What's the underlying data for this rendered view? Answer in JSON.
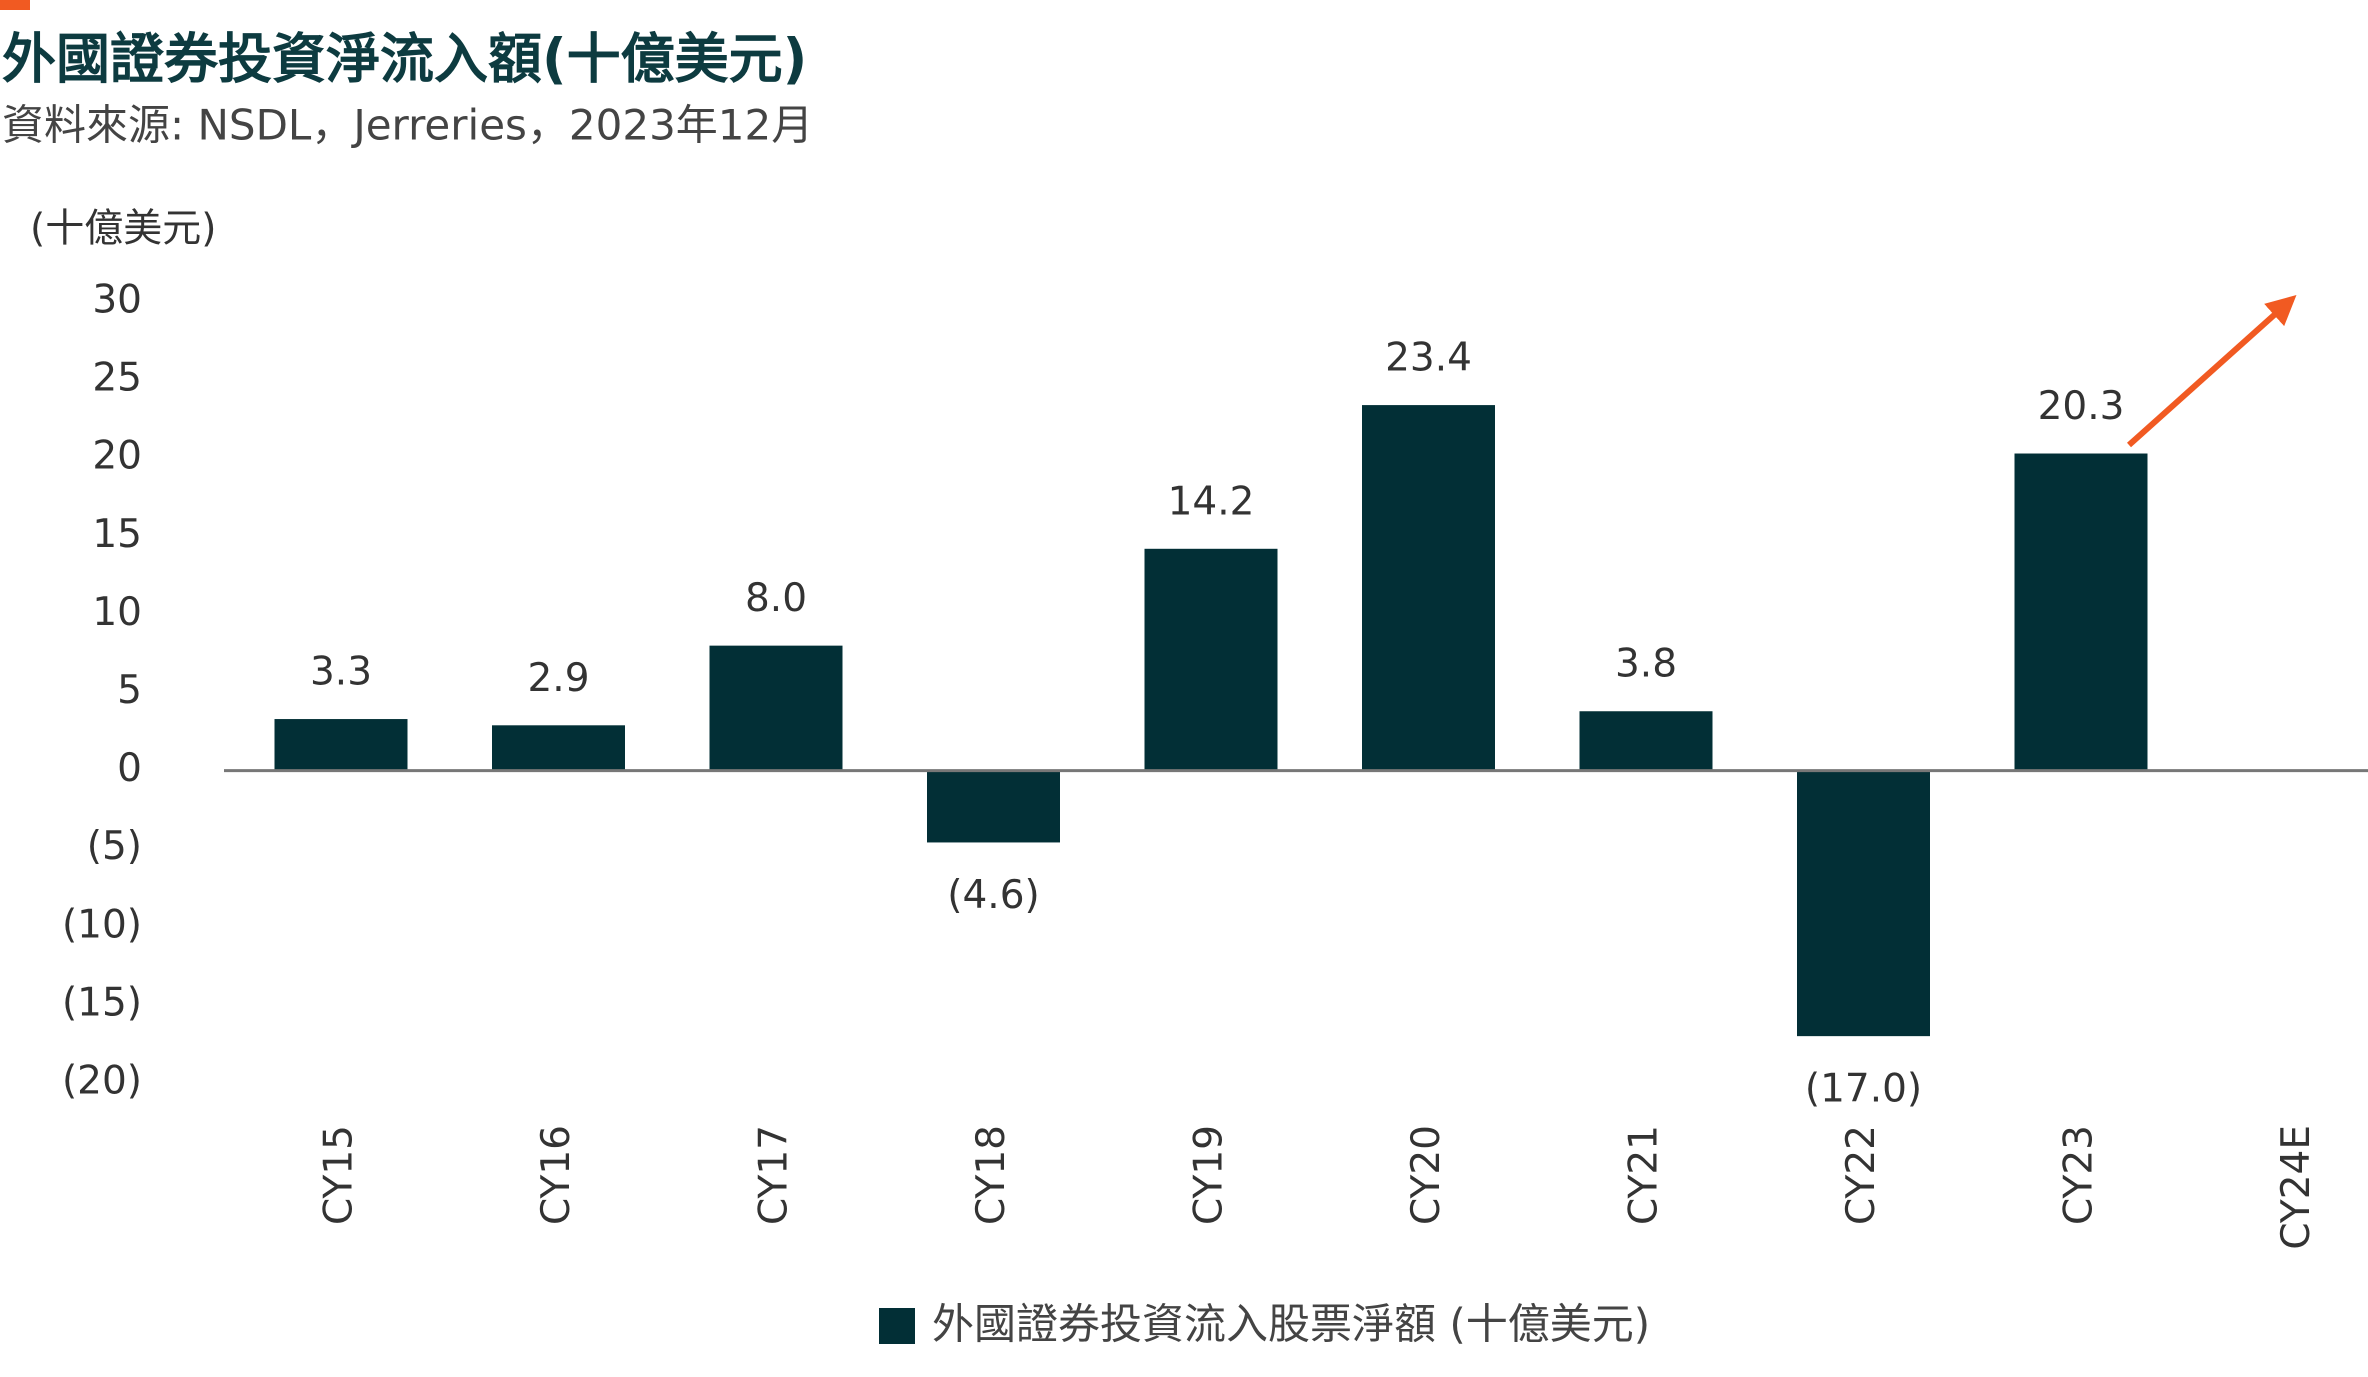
{
  "chart_data": {
    "type": "bar",
    "title": "外國證券投資淨流入額(十億美元)",
    "subtitle": "資料來源: NSDL，Jerreries，2023年12月",
    "y_label": "(十億美元)",
    "categories": [
      "CY15",
      "CY16",
      "CY17",
      "CY18",
      "CY19",
      "CY20",
      "CY21",
      "CY22",
      "CY23",
      "CY24E"
    ],
    "series": [
      {
        "name": "外國證券投資流入股票淨額 (十億美元)",
        "color": "#022f36",
        "values": [
          3.3,
          2.9,
          8.0,
          -4.6,
          14.2,
          23.4,
          3.8,
          -17.0,
          20.3,
          null
        ],
        "value_labels": [
          "3.3",
          "2.9",
          "8.0",
          "(4.6)",
          "14.2",
          "23.4",
          "3.8",
          "(17.0)",
          "20.3",
          null
        ]
      }
    ],
    "ylim": [
      -20,
      30
    ],
    "yticks": [
      {
        "value": -20,
        "label": "(20)"
      },
      {
        "value": -15,
        "label": "(15)"
      },
      {
        "value": -10,
        "label": "(10)"
      },
      {
        "value": -5,
        "label": "(5)"
      },
      0,
      5,
      10,
      15,
      20,
      25,
      30
    ]
  }
}
